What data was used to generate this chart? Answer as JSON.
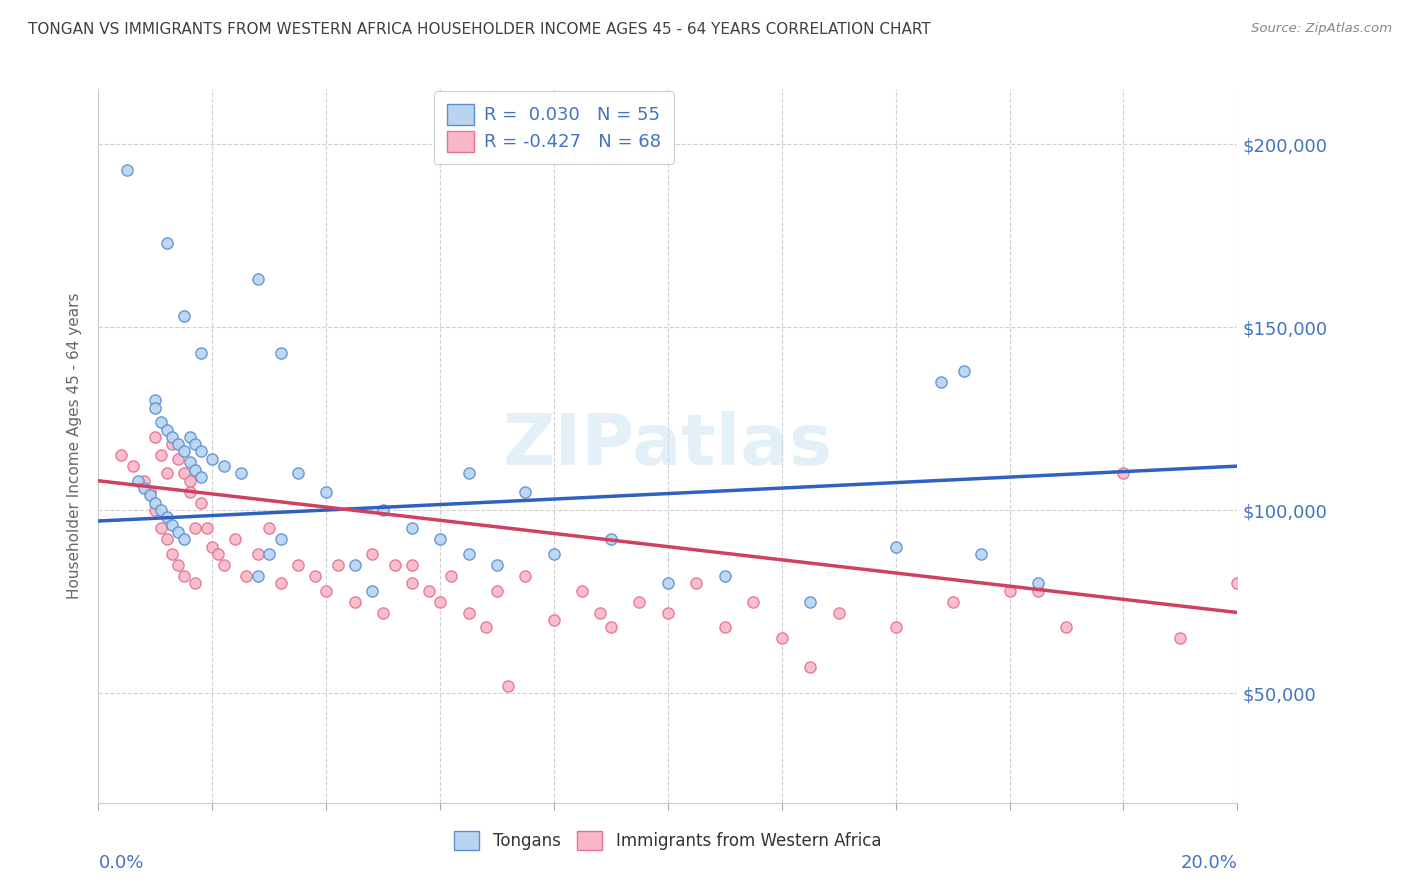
{
  "title": "TONGAN VS IMMIGRANTS FROM WESTERN AFRICA HOUSEHOLDER INCOME AGES 45 - 64 YEARS CORRELATION CHART",
  "source": "Source: ZipAtlas.com",
  "ylabel": "Householder Income Ages 45 - 64 years",
  "y_ticks": [
    50000,
    100000,
    150000,
    200000
  ],
  "y_tick_labels": [
    "$50,000",
    "$100,000",
    "$150,000",
    "$200,000"
  ],
  "x_min": 0.0,
  "x_max": 20.0,
  "y_min": 20000,
  "y_max": 215000,
  "series1_name": "Tongans",
  "series1_face_color": "#b8d4f0",
  "series1_edge_color": "#5b8fd4",
  "series1_line_color": "#3060c0",
  "series1_R": 0.03,
  "series1_N": 55,
  "series2_name": "Immigrants from Western Africa",
  "series2_face_color": "#f8b8c8",
  "series2_edge_color": "#e87090",
  "series2_line_color": "#d04060",
  "series2_R": -0.427,
  "series2_N": 68,
  "watermark": "ZIPatlas",
  "background_color": "#ffffff",
  "grid_color": "#cccccc",
  "title_color": "#404040",
  "axis_label_color": "#4472c4",
  "tongans_x": [
    0.5,
    1.2,
    2.8,
    1.5,
    1.8,
    3.2,
    1.0,
    1.0,
    1.1,
    1.2,
    1.3,
    1.4,
    1.5,
    1.6,
    1.7,
    1.8,
    0.7,
    0.8,
    0.9,
    1.0,
    1.1,
    1.2,
    1.3,
    1.4,
    1.5,
    1.6,
    1.7,
    1.8,
    2.0,
    2.2,
    2.5,
    3.0,
    3.5,
    4.0,
    4.5,
    5.0,
    5.5,
    6.0,
    6.5,
    7.0,
    8.0,
    9.0,
    10.0,
    11.0,
    12.5,
    14.0,
    15.5,
    16.5,
    6.5,
    7.5,
    2.8,
    3.2,
    4.8,
    14.8,
    15.2
  ],
  "tongans_y": [
    193000,
    173000,
    163000,
    153000,
    143000,
    143000,
    130000,
    128000,
    124000,
    122000,
    120000,
    118000,
    116000,
    113000,
    111000,
    109000,
    108000,
    106000,
    104000,
    102000,
    100000,
    98000,
    96000,
    94000,
    92000,
    120000,
    118000,
    116000,
    114000,
    112000,
    110000,
    88000,
    110000,
    105000,
    85000,
    100000,
    95000,
    92000,
    88000,
    85000,
    88000,
    92000,
    80000,
    82000,
    75000,
    90000,
    88000,
    80000,
    110000,
    105000,
    82000,
    92000,
    78000,
    135000,
    138000
  ],
  "western_africa_x": [
    0.4,
    0.6,
    0.8,
    0.9,
    1.0,
    1.0,
    1.1,
    1.1,
    1.2,
    1.2,
    1.3,
    1.3,
    1.4,
    1.4,
    1.5,
    1.5,
    1.6,
    1.6,
    1.7,
    1.7,
    1.8,
    1.9,
    2.0,
    2.1,
    2.2,
    2.4,
    2.6,
    2.8,
    3.0,
    3.2,
    3.5,
    3.8,
    4.0,
    4.2,
    4.5,
    4.8,
    5.0,
    5.2,
    5.5,
    5.8,
    6.0,
    6.2,
    6.5,
    6.8,
    7.0,
    7.5,
    8.0,
    8.5,
    9.0,
    9.5,
    10.0,
    10.5,
    11.0,
    11.5,
    12.0,
    13.0,
    14.0,
    15.0,
    16.0,
    17.0,
    18.0,
    19.0,
    7.2,
    12.5,
    5.5,
    8.8,
    16.5,
    20.0
  ],
  "western_africa_y": [
    115000,
    112000,
    108000,
    105000,
    120000,
    100000,
    115000,
    95000,
    110000,
    92000,
    118000,
    88000,
    114000,
    85000,
    110000,
    82000,
    108000,
    105000,
    95000,
    80000,
    102000,
    95000,
    90000,
    88000,
    85000,
    92000,
    82000,
    88000,
    95000,
    80000,
    85000,
    82000,
    78000,
    85000,
    75000,
    88000,
    72000,
    85000,
    80000,
    78000,
    75000,
    82000,
    72000,
    68000,
    78000,
    82000,
    70000,
    78000,
    68000,
    75000,
    72000,
    80000,
    68000,
    75000,
    65000,
    72000,
    68000,
    75000,
    78000,
    68000,
    110000,
    65000,
    52000,
    57000,
    85000,
    72000,
    78000,
    80000
  ],
  "trend1_x0": 0.0,
  "trend1_y0": 97000,
  "trend1_x1": 20.0,
  "trend1_y1": 112000,
  "trend2_x0": 0.0,
  "trend2_y0": 108000,
  "trend2_x1": 20.0,
  "trend2_y1": 72000
}
